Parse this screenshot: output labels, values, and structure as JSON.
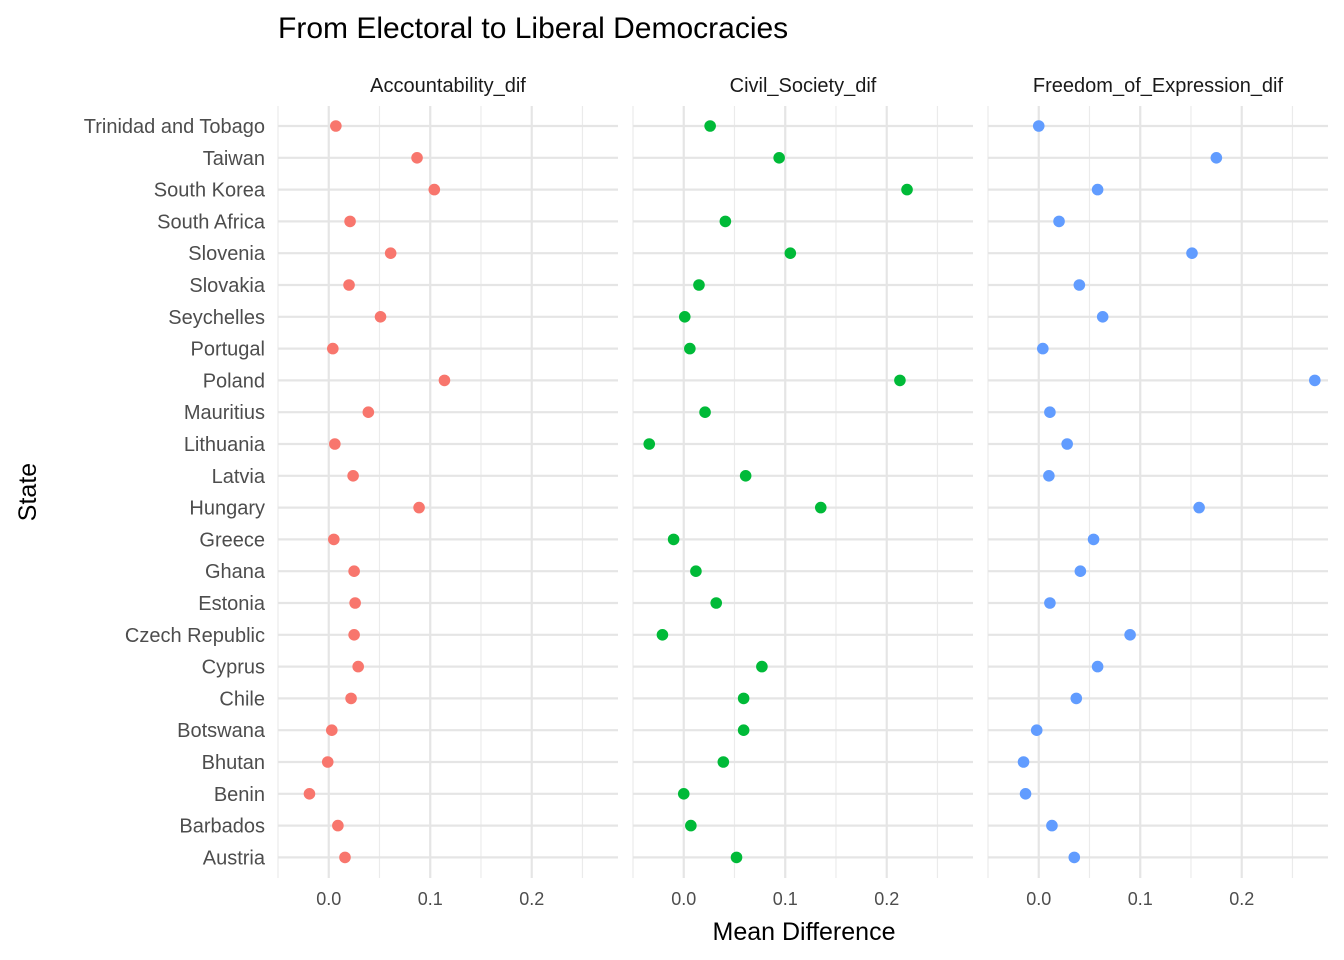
{
  "chart_data": {
    "type": "scatter",
    "title": "From Electoral to Liberal Democracies",
    "xlabel": "Mean Difference",
    "ylabel": "State",
    "xlim": [
      -0.05,
      0.285
    ],
    "x_ticks": [
      0.0,
      0.1,
      0.2
    ],
    "x_tick_labels": [
      "0.0",
      "0.1",
      "0.2"
    ],
    "grid": true,
    "legend": "none",
    "categories": [
      "Trinidad and Tobago",
      "Taiwan",
      "South Korea",
      "South Africa",
      "Slovenia",
      "Slovakia",
      "Seychelles",
      "Portugal",
      "Poland",
      "Mauritius",
      "Lithuania",
      "Latvia",
      "Hungary",
      "Greece",
      "Ghana",
      "Estonia",
      "Czech Republic",
      "Cyprus",
      "Chile",
      "Botswana",
      "Bhutan",
      "Benin",
      "Barbados",
      "Austria"
    ],
    "series": [
      {
        "name": "Accountability_dif",
        "color": "#F8766D",
        "values": [
          0.007,
          0.087,
          0.104,
          0.021,
          0.061,
          0.02,
          0.051,
          0.004,
          0.114,
          0.039,
          0.006,
          0.024,
          0.089,
          0.005,
          0.025,
          0.026,
          0.025,
          0.029,
          0.022,
          0.003,
          -0.001,
          -0.019,
          0.009,
          0.016
        ]
      },
      {
        "name": "Civil_Society_dif",
        "color": "#00BA38",
        "values": [
          0.026,
          0.094,
          0.22,
          0.041,
          0.105,
          0.015,
          0.001,
          0.006,
          0.213,
          0.021,
          -0.034,
          0.061,
          0.135,
          -0.01,
          0.012,
          0.032,
          -0.021,
          0.077,
          0.059,
          0.059,
          0.039,
          0.0,
          0.007,
          0.052
        ]
      },
      {
        "name": "Freedom_of_Expression_dif",
        "color": "#619CFF",
        "values": [
          0.0,
          0.175,
          0.058,
          0.02,
          0.151,
          0.04,
          0.063,
          0.004,
          0.272,
          0.011,
          0.028,
          0.01,
          0.158,
          0.054,
          0.041,
          0.011,
          0.09,
          0.058,
          0.037,
          -0.002,
          -0.015,
          -0.013,
          0.013,
          0.035
        ]
      }
    ]
  }
}
